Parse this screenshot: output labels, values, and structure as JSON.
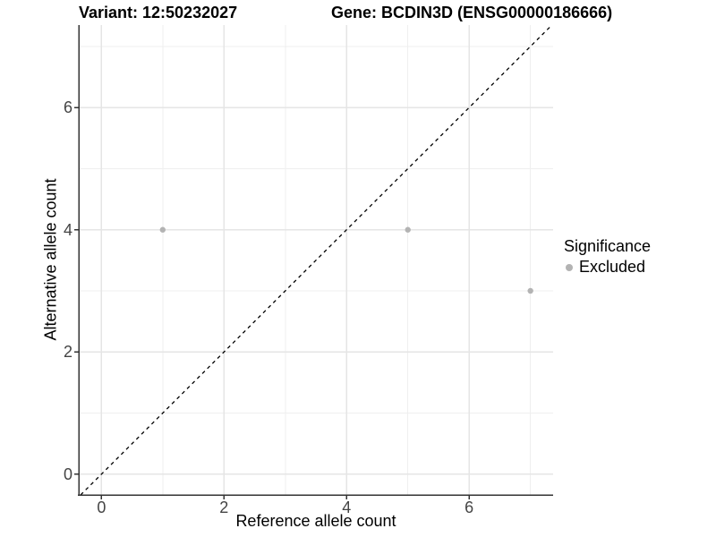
{
  "chart_data": {
    "type": "scatter",
    "title_left": "Variant: 12:50232027",
    "title_right": "Gene: BCDIN3D (ENSG00000186666)",
    "xlabel": "Reference allele count",
    "ylabel": "Alternative allele count",
    "xlim": [
      -0.37,
      7.37
    ],
    "ylim": [
      -0.34,
      7.35
    ],
    "x_major_ticks": [
      0,
      2,
      4,
      6
    ],
    "x_minor_ticks": [
      1,
      3,
      5,
      7
    ],
    "y_major_ticks": [
      0,
      2,
      4,
      6
    ],
    "y_minor_ticks": [
      1,
      3,
      5,
      7
    ],
    "grid": true,
    "series": [
      {
        "name": "Excluded",
        "points": [
          [
            1,
            4
          ],
          [
            5,
            4
          ],
          [
            7,
            3
          ]
        ],
        "color": "#b3b3b3"
      }
    ],
    "reference_line": {
      "type": "abline",
      "slope": 1,
      "intercept": 0,
      "style": "dashed",
      "color": "#000000"
    },
    "legend": {
      "title": "Significance",
      "position": "right",
      "items": [
        {
          "label": "Excluded",
          "color": "#b3b3b3"
        }
      ]
    }
  },
  "colors": {
    "background": "#ffffff",
    "grid_major": "#e5e5e5",
    "grid_minor": "#efefef",
    "axis": "#333333",
    "tick_text": "#444444",
    "title_text": "#000000"
  }
}
